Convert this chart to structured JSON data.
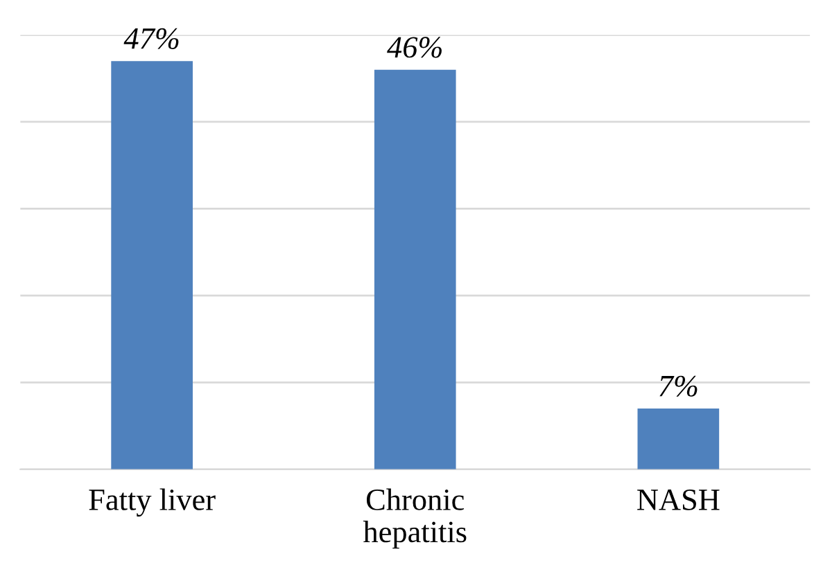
{
  "chart_data": {
    "type": "bar",
    "categories": [
      "Fatty liver",
      "Chronic\nhepatitis",
      "NASH"
    ],
    "values": [
      47,
      46,
      7
    ],
    "value_labels": [
      "47%",
      "46%",
      "7%"
    ],
    "color": "#4f81bd",
    "ylim": [
      0,
      50
    ],
    "yticks": [
      {
        "value": 0,
        "label": null
      },
      {
        "value": 10,
        "label": null
      },
      {
        "value": 20,
        "label": null
      },
      {
        "value": 30,
        "label": null
      },
      {
        "value": 40,
        "label": null
      },
      {
        "value": 50,
        "label": null
      }
    ],
    "grid": "y",
    "tick_labels": "x"
  }
}
